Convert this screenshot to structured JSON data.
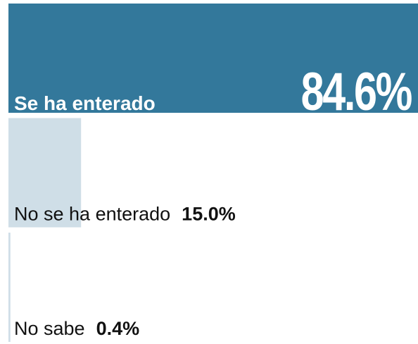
{
  "chart_data": {
    "type": "bar",
    "categories": [
      "Se ha enterado",
      "No se ha enterado",
      "No sabe"
    ],
    "values": [
      84.6,
      15.0,
      0.4
    ],
    "value_labels": [
      "84.6%",
      "15.0%",
      "0.4%"
    ],
    "colors": [
      "#33789b",
      "#cfdee7",
      "#cfdee7"
    ]
  }
}
